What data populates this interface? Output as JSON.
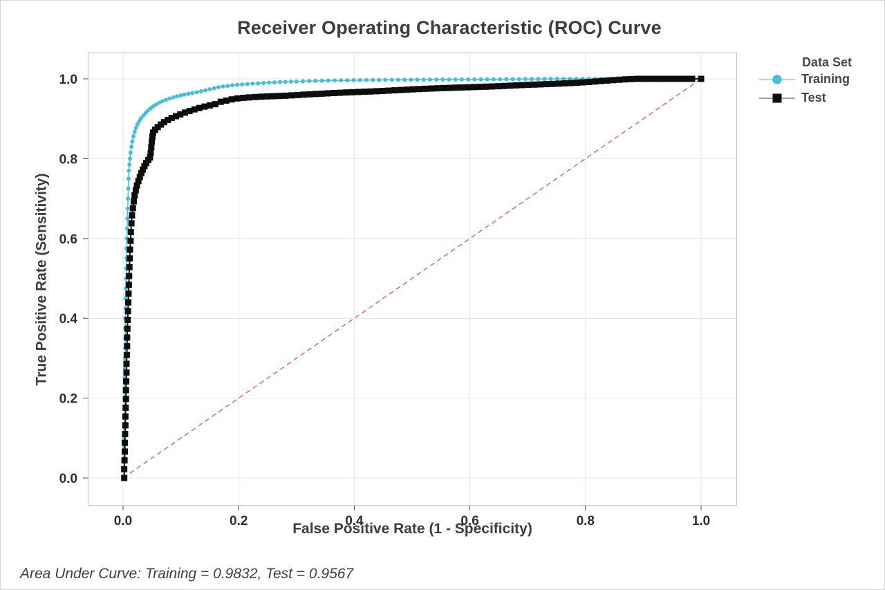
{
  "window_border_color": "#d6d6d6",
  "chart_data": {
    "type": "line",
    "title": "Receiver Operating Characteristic (ROC) Curve",
    "xlabel": "False Positive Rate (1 - Specificity)",
    "ylabel": "True Positive Rate (Sensitivity)",
    "xlim": [
      0,
      1
    ],
    "ylim": [
      0,
      1
    ],
    "xticks": [
      0.0,
      0.2,
      0.4,
      0.6,
      0.8,
      1.0
    ],
    "yticks": [
      0.0,
      0.2,
      0.4,
      0.6,
      0.8,
      1.0
    ],
    "grid": true,
    "colors": {
      "grid": "#e4e4e4",
      "frame": "#c6c6c6",
      "tick": "#4d4d4d",
      "tick_label": "#2e2e2e"
    },
    "legend": {
      "title": "Data Set",
      "position": "right",
      "entries": [
        {
          "label": "Training",
          "marker": "circle",
          "marker_color": "#45bedc",
          "line_color": "#7fd4e8"
        },
        {
          "label": "Test",
          "marker": "square",
          "marker_color": "#0d0d0d",
          "line_color": "#808080"
        }
      ]
    },
    "reference_line": {
      "from": [
        0,
        0
      ],
      "to": [
        1,
        1
      ],
      "style": "dashed",
      "color": "#e2564b",
      "meaning": "chance diagonal"
    },
    "auc": {
      "training": 0.9832,
      "test": 0.9567
    },
    "footnote": "Area Under Curve: Training = 0.9832, Test = 0.9567",
    "series": [
      {
        "name": "Training",
        "color": "#45bedc",
        "marker": "circle",
        "points": [
          [
            0.002,
            0.0
          ],
          [
            0.002,
            0.025
          ],
          [
            0.002,
            0.05
          ],
          [
            0.002,
            0.075
          ],
          [
            0.002,
            0.1
          ],
          [
            0.0025,
            0.125
          ],
          [
            0.0025,
            0.15
          ],
          [
            0.003,
            0.175
          ],
          [
            0.003,
            0.2
          ],
          [
            0.003,
            0.225
          ],
          [
            0.003,
            0.25
          ],
          [
            0.0035,
            0.275
          ],
          [
            0.0035,
            0.3
          ],
          [
            0.004,
            0.325
          ],
          [
            0.004,
            0.35
          ],
          [
            0.004,
            0.375
          ],
          [
            0.004,
            0.4
          ],
          [
            0.0045,
            0.425
          ],
          [
            0.0045,
            0.45
          ],
          [
            0.005,
            0.475
          ],
          [
            0.005,
            0.5
          ],
          [
            0.0055,
            0.525
          ],
          [
            0.006,
            0.55
          ],
          [
            0.006,
            0.575
          ],
          [
            0.0065,
            0.6
          ],
          [
            0.007,
            0.625
          ],
          [
            0.0075,
            0.65
          ],
          [
            0.008,
            0.675
          ],
          [
            0.0085,
            0.7
          ],
          [
            0.009,
            0.725
          ],
          [
            0.0095,
            0.75
          ],
          [
            0.01,
            0.77
          ],
          [
            0.011,
            0.785
          ],
          [
            0.012,
            0.8
          ],
          [
            0.013,
            0.815
          ],
          [
            0.0145,
            0.83
          ],
          [
            0.016,
            0.843
          ],
          [
            0.018,
            0.856
          ],
          [
            0.02,
            0.867
          ],
          [
            0.0225,
            0.877
          ],
          [
            0.025,
            0.886
          ],
          [
            0.028,
            0.894
          ],
          [
            0.031,
            0.901
          ],
          [
            0.035,
            0.908
          ],
          [
            0.039,
            0.9145
          ],
          [
            0.043,
            0.9205
          ],
          [
            0.0475,
            0.926
          ],
          [
            0.052,
            0.931
          ],
          [
            0.057,
            0.9355
          ],
          [
            0.0625,
            0.94
          ],
          [
            0.068,
            0.944
          ],
          [
            0.074,
            0.9475
          ],
          [
            0.08,
            0.9505
          ],
          [
            0.0865,
            0.9535
          ],
          [
            0.093,
            0.956
          ],
          [
            0.0995,
            0.9585
          ],
          [
            0.106,
            0.9605
          ],
          [
            0.113,
            0.9625
          ],
          [
            0.12,
            0.9645
          ],
          [
            0.1275,
            0.9665
          ],
          [
            0.135,
            0.969
          ],
          [
            0.1425,
            0.9715
          ],
          [
            0.15,
            0.974
          ],
          [
            0.1575,
            0.9765
          ],
          [
            0.165,
            0.979
          ],
          [
            0.173,
            0.981
          ],
          [
            0.181,
            0.9825
          ],
          [
            0.189,
            0.984
          ],
          [
            0.1975,
            0.985
          ],
          [
            0.206,
            0.986
          ],
          [
            0.215,
            0.987
          ],
          [
            0.224,
            0.988
          ],
          [
            0.2335,
            0.9888
          ],
          [
            0.243,
            0.9896
          ],
          [
            0.2525,
            0.9904
          ],
          [
            0.262,
            0.9911
          ],
          [
            0.2715,
            0.9918
          ],
          [
            0.281,
            0.9924
          ],
          [
            0.2905,
            0.993
          ],
          [
            0.3,
            0.9935
          ],
          [
            0.311,
            0.994
          ],
          [
            0.322,
            0.9945
          ],
          [
            0.333,
            0.995
          ],
          [
            0.344,
            0.9953
          ],
          [
            0.355,
            0.9956
          ],
          [
            0.366,
            0.9959
          ],
          [
            0.377,
            0.9962
          ],
          [
            0.388,
            0.9964
          ],
          [
            0.399,
            0.9966
          ],
          [
            0.41,
            0.9968
          ],
          [
            0.421,
            0.997
          ],
          [
            0.432,
            0.9971
          ],
          [
            0.443,
            0.9972
          ],
          [
            0.454,
            0.9973
          ],
          [
            0.465,
            0.9974
          ],
          [
            0.476,
            0.9975
          ],
          [
            0.487,
            0.9976
          ],
          [
            0.498,
            0.9977
          ],
          [
            0.509,
            0.9978
          ],
          [
            0.52,
            0.9979
          ],
          [
            0.531,
            0.998
          ],
          [
            0.542,
            0.9981
          ],
          [
            0.553,
            0.9982
          ],
          [
            0.564,
            0.9983
          ],
          [
            0.575,
            0.9984
          ],
          [
            0.586,
            0.9985
          ],
          [
            0.597,
            0.9986
          ],
          [
            0.608,
            0.9987
          ],
          [
            0.619,
            0.9988
          ],
          [
            0.63,
            0.9989
          ],
          [
            0.641,
            0.999
          ],
          [
            0.652,
            0.9991
          ],
          [
            0.663,
            0.9992
          ],
          [
            0.674,
            0.9993
          ],
          [
            0.685,
            0.9994
          ],
          [
            0.696,
            0.9995
          ],
          [
            0.707,
            0.9996
          ],
          [
            0.718,
            0.9997
          ],
          [
            0.729,
            0.9998
          ],
          [
            0.74,
            0.9999
          ],
          [
            0.751,
            1.0
          ],
          [
            0.762,
            1.0
          ],
          [
            0.773,
            1.0
          ],
          [
            0.784,
            1.0
          ],
          [
            0.795,
            1.0
          ],
          [
            0.806,
            1.0
          ],
          [
            0.817,
            1.0
          ],
          [
            0.828,
            1.0
          ],
          [
            0.839,
            1.0
          ],
          [
            0.85,
            1.0
          ],
          [
            0.861,
            1.0
          ],
          [
            0.872,
            1.0
          ],
          [
            0.883,
            1.0
          ],
          [
            0.894,
            1.0
          ],
          [
            0.905,
            1.0
          ],
          [
            0.916,
            1.0
          ],
          [
            0.927,
            1.0
          ],
          [
            0.938,
            1.0
          ],
          [
            0.949,
            1.0
          ],
          [
            0.96,
            1.0
          ],
          [
            0.971,
            1.0
          ],
          [
            0.982,
            1.0
          ],
          [
            1.0,
            1.0
          ]
        ]
      },
      {
        "name": "Test",
        "color": "#0d0d0d",
        "marker": "square",
        "points": [
          [
            0.002,
            0.0
          ],
          [
            0.002,
            0.022
          ],
          [
            0.0025,
            0.044
          ],
          [
            0.003,
            0.066
          ],
          [
            0.003,
            0.088
          ],
          [
            0.0035,
            0.11
          ],
          [
            0.004,
            0.132
          ],
          [
            0.004,
            0.154
          ],
          [
            0.0045,
            0.176
          ],
          [
            0.005,
            0.198
          ],
          [
            0.005,
            0.22
          ],
          [
            0.0055,
            0.242
          ],
          [
            0.006,
            0.264
          ],
          [
            0.006,
            0.286
          ],
          [
            0.0065,
            0.308
          ],
          [
            0.007,
            0.33
          ],
          [
            0.007,
            0.352
          ],
          [
            0.0075,
            0.374
          ],
          [
            0.008,
            0.396
          ],
          [
            0.0085,
            0.418
          ],
          [
            0.009,
            0.44
          ],
          [
            0.0095,
            0.462
          ],
          [
            0.01,
            0.484
          ],
          [
            0.0105,
            0.506
          ],
          [
            0.011,
            0.528
          ],
          [
            0.0115,
            0.55
          ],
          [
            0.012,
            0.572
          ],
          [
            0.013,
            0.594
          ],
          [
            0.0135,
            0.616
          ],
          [
            0.0145,
            0.638
          ],
          [
            0.0155,
            0.658
          ],
          [
            0.017,
            0.676
          ],
          [
            0.0185,
            0.693
          ],
          [
            0.02,
            0.708
          ],
          [
            0.022,
            0.721
          ],
          [
            0.024,
            0.733
          ],
          [
            0.0265,
            0.744
          ],
          [
            0.029,
            0.754
          ],
          [
            0.0315,
            0.7635
          ],
          [
            0.034,
            0.7725
          ],
          [
            0.037,
            0.781
          ],
          [
            0.04,
            0.789
          ],
          [
            0.0435,
            0.7965
          ],
          [
            0.0465,
            0.803
          ],
          [
            0.0478,
            0.8145
          ],
          [
            0.0488,
            0.8285
          ],
          [
            0.0498,
            0.8425
          ],
          [
            0.0508,
            0.8555
          ],
          [
            0.052,
            0.8655
          ],
          [
            0.0555,
            0.8725
          ],
          [
            0.06,
            0.879
          ],
          [
            0.0655,
            0.8855
          ],
          [
            0.071,
            0.8915
          ],
          [
            0.0775,
            0.897
          ],
          [
            0.084,
            0.902
          ],
          [
            0.0915,
            0.9065
          ],
          [
            0.099,
            0.911
          ],
          [
            0.107,
            0.9155
          ],
          [
            0.115,
            0.9195
          ],
          [
            0.1235,
            0.9235
          ],
          [
            0.132,
            0.927
          ],
          [
            0.141,
            0.9305
          ],
          [
            0.15,
            0.9335
          ],
          [
            0.1595,
            0.9365
          ],
          [
            0.169,
            0.9425
          ],
          [
            0.1785,
            0.9455
          ],
          [
            0.188,
            0.9485
          ],
          [
            0.198,
            0.951
          ],
          [
            0.208,
            0.9525
          ],
          [
            0.218,
            0.9535
          ],
          [
            0.2285,
            0.9545
          ],
          [
            0.239,
            0.9553
          ],
          [
            0.2495,
            0.956
          ],
          [
            0.26,
            0.9566
          ],
          [
            0.2705,
            0.9572
          ],
          [
            0.281,
            0.9578
          ],
          [
            0.2915,
            0.9586
          ],
          [
            0.302,
            0.9595
          ],
          [
            0.3125,
            0.9604
          ],
          [
            0.323,
            0.9613
          ],
          [
            0.3335,
            0.9621
          ],
          [
            0.344,
            0.9629
          ],
          [
            0.3545,
            0.9637
          ],
          [
            0.365,
            0.9645
          ],
          [
            0.3755,
            0.9652
          ],
          [
            0.386,
            0.9659
          ],
          [
            0.3965,
            0.9665
          ],
          [
            0.407,
            0.9671
          ],
          [
            0.4175,
            0.9677
          ],
          [
            0.428,
            0.9683
          ],
          [
            0.4385,
            0.969
          ],
          [
            0.449,
            0.9697
          ],
          [
            0.4595,
            0.9705
          ],
          [
            0.47,
            0.9713
          ],
          [
            0.4805,
            0.9721
          ],
          [
            0.491,
            0.9729
          ],
          [
            0.5015,
            0.9737
          ],
          [
            0.512,
            0.9744
          ],
          [
            0.5225,
            0.9751
          ],
          [
            0.533,
            0.9757
          ],
          [
            0.5435,
            0.9763
          ],
          [
            0.554,
            0.9769
          ],
          [
            0.5645,
            0.9774
          ],
          [
            0.575,
            0.9779
          ],
          [
            0.5855,
            0.9784
          ],
          [
            0.596,
            0.9789
          ],
          [
            0.6065,
            0.9794
          ],
          [
            0.617,
            0.9799
          ],
          [
            0.6275,
            0.9804
          ],
          [
            0.638,
            0.9809
          ],
          [
            0.6485,
            0.9815
          ],
          [
            0.659,
            0.9822
          ],
          [
            0.6695,
            0.9829
          ],
          [
            0.68,
            0.9836
          ],
          [
            0.6905,
            0.9843
          ],
          [
            0.701,
            0.985
          ],
          [
            0.7115,
            0.9856
          ],
          [
            0.722,
            0.9862
          ],
          [
            0.7325,
            0.9868
          ],
          [
            0.743,
            0.9874
          ],
          [
            0.7535,
            0.988
          ],
          [
            0.764,
            0.9887
          ],
          [
            0.7745,
            0.9895
          ],
          [
            0.785,
            0.9903
          ],
          [
            0.7955,
            0.9912
          ],
          [
            0.806,
            0.9922
          ],
          [
            0.8165,
            0.9933
          ],
          [
            0.827,
            0.9945
          ],
          [
            0.8375,
            0.9957
          ],
          [
            0.848,
            0.9968
          ],
          [
            0.8585,
            0.9978
          ],
          [
            0.869,
            0.9987
          ],
          [
            0.8795,
            0.9994
          ],
          [
            0.89,
            1.0
          ],
          [
            0.9005,
            1.0
          ],
          [
            0.911,
            1.0
          ],
          [
            0.9215,
            1.0
          ],
          [
            0.932,
            1.0
          ],
          [
            0.9425,
            1.0
          ],
          [
            0.953,
            1.0
          ],
          [
            0.9635,
            1.0
          ],
          [
            0.974,
            1.0
          ],
          [
            0.9845,
            1.0
          ],
          [
            1.0,
            1.0
          ]
        ]
      }
    ]
  }
}
